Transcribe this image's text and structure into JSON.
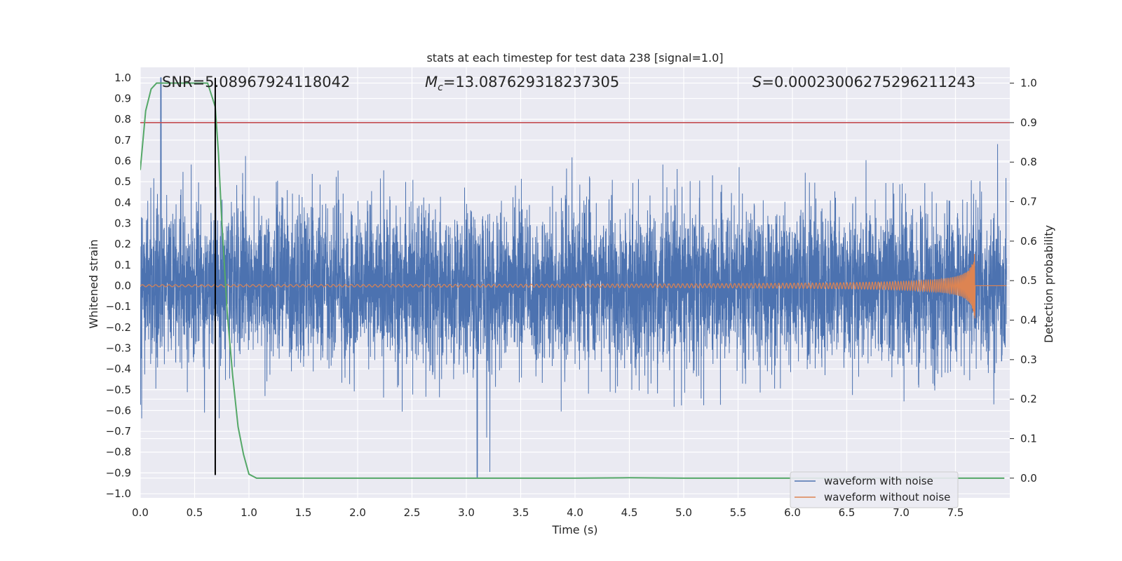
{
  "chart_data": {
    "type": "line",
    "title": "stats at each timestep for test data 238 [signal=1.0]",
    "xlabel": "Time (s)",
    "ylabel_left": "Whitened strain",
    "ylabel_right": "Detection probability",
    "xlim": [
      0.0,
      8.0
    ],
    "ylim_left": [
      -1.02,
      1.05
    ],
    "ylim_right": [
      -0.05,
      1.04
    ],
    "x_ticks": [
      "0.0",
      "0.5",
      "1.0",
      "1.5",
      "2.0",
      "2.5",
      "3.0",
      "3.5",
      "4.0",
      "4.5",
      "5.0",
      "5.5",
      "6.0",
      "6.5",
      "7.0",
      "7.5"
    ],
    "y_left_ticks": [
      "-1.0",
      "-0.9",
      "-0.8",
      "-0.7",
      "-0.6",
      "-0.5",
      "-0.4",
      "-0.3",
      "-0.2",
      "-0.1",
      "0.0",
      "0.1",
      "0.2",
      "0.3",
      "0.4",
      "0.5",
      "0.6",
      "0.7",
      "0.8",
      "0.9",
      "1.0"
    ],
    "y_right_ticks": [
      "0.0",
      "0.1",
      "0.2",
      "0.3",
      "0.4",
      "0.5",
      "0.6",
      "0.7",
      "0.8",
      "0.9",
      "1.0"
    ],
    "grid": true,
    "annotations": {
      "snr": "SNR=5.08967924118042",
      "mc_symbol": "M",
      "mc_subscript": "c",
      "mc_value": "=13.087629318237305",
      "s_symbol": "S",
      "s_value": "=0.00023006275296211243"
    },
    "legend": {
      "position": "bottom-right",
      "entries": [
        "waveform with noise",
        "waveform without noise"
      ]
    },
    "colors": {
      "noise": "#4c72b0",
      "clean": "#dd8452",
      "probability": "#55a868",
      "threshold": "#c44e52",
      "marker": "#000000",
      "background": "#eaeaf2"
    },
    "threshold_right": 0.9,
    "marker_time": 0.69,
    "merger_time": 7.68,
    "series": [
      {
        "name": "waveform with noise",
        "axis": "left",
        "description_stats": {
          "typical_amplitude": 0.3,
          "peak_positive": 1.0,
          "peak_negative": -0.92
        }
      },
      {
        "name": "waveform without noise",
        "axis": "left",
        "chirp_start_amplitude": 0.005,
        "chirp_end_amplitude": 0.17
      },
      {
        "name": "detection probability",
        "axis": "right",
        "x": [
          0.0,
          0.05,
          0.1,
          0.15,
          0.2,
          0.3,
          0.4,
          0.5,
          0.62,
          0.69,
          0.72,
          0.75,
          0.8,
          0.85,
          0.9,
          0.95,
          1.0,
          1.07,
          1.5,
          2.0,
          3.0,
          4.0,
          4.5,
          5.0,
          6.0,
          7.0,
          7.95
        ],
        "values": [
          0.78,
          0.93,
          0.985,
          1.0,
          1.0,
          1.0,
          1.0,
          1.0,
          1.0,
          0.94,
          0.82,
          0.65,
          0.42,
          0.26,
          0.13,
          0.06,
          0.01,
          0.0,
          0.0,
          0.0,
          0.0,
          0.0,
          0.001,
          0.0,
          0.0,
          0.0,
          0.0
        ]
      }
    ]
  }
}
